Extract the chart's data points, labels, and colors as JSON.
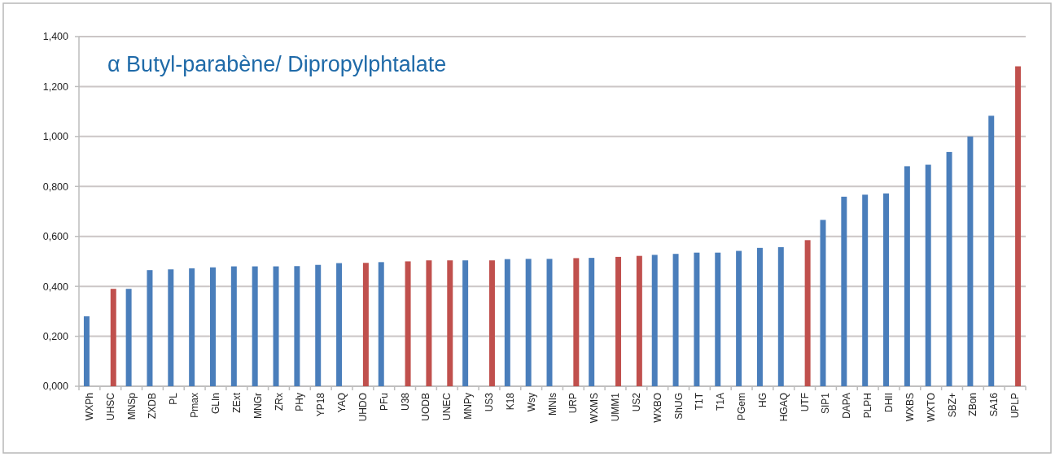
{
  "chart_data": {
    "type": "bar",
    "title": "α Butyl-parabène/ Dipropylphtalate",
    "categories": [
      "WXPh",
      "UHSC",
      "MNSp",
      "ZXDB",
      "PL",
      "Pmax",
      "GLIn",
      "ZExt",
      "MNGr",
      "ZRx",
      "PHy",
      "YP18",
      "YAQ",
      "UHDO",
      "PFu",
      "U38",
      "UODB",
      "UNEC",
      "MNPy",
      "US3",
      "K18",
      "Wsy",
      "MNIs",
      "URP",
      "WXMS",
      "UMM1",
      "US2",
      "WXBO",
      "ShUG",
      "T1T",
      "T1A",
      "PGem",
      "HG",
      "HGAQ",
      "UTF",
      "SIP1",
      "DAPA",
      "PLPH",
      "DHII",
      "WXBS",
      "WXTO",
      "SBZ+",
      "ZBon",
      "SA16",
      "UPLP"
    ],
    "series": [
      {
        "color": "#4a7ebb",
        "values": [
          0.28,
          null,
          0.39,
          0.465,
          0.468,
          0.472,
          0.476,
          0.48,
          0.48,
          0.48,
          0.481,
          0.486,
          0.493,
          null,
          0.497,
          null,
          null,
          null,
          0.504,
          null,
          0.509,
          0.51,
          0.51,
          null,
          0.514,
          null,
          null,
          0.526,
          0.53,
          0.535,
          0.535,
          0.542,
          0.554,
          0.557,
          null,
          0.666,
          0.759,
          0.767,
          0.772,
          0.881,
          0.887,
          0.938,
          1.0,
          1.083,
          null
        ]
      },
      {
        "color": "#c0504d",
        "values": [
          null,
          0.39,
          null,
          null,
          null,
          null,
          null,
          null,
          null,
          null,
          null,
          null,
          null,
          0.494,
          null,
          0.5,
          0.504,
          0.504,
          null,
          0.504,
          null,
          null,
          null,
          0.513,
          null,
          0.518,
          0.522,
          null,
          null,
          null,
          null,
          null,
          null,
          null,
          0.585,
          null,
          null,
          null,
          null,
          null,
          null,
          null,
          null,
          null,
          1.281
        ]
      }
    ],
    "ylim": [
      0,
      1.4
    ],
    "yticks": [
      {
        "value": 0,
        "label": "0,000"
      },
      {
        "value": 0.2,
        "label": "0,200"
      },
      {
        "value": 0.4,
        "label": "0,400"
      },
      {
        "value": 0.6,
        "label": "0,600"
      },
      {
        "value": 0.8,
        "label": "0,800"
      },
      {
        "value": 1.0,
        "label": "1,000"
      },
      {
        "value": 1.2,
        "label": "1,200"
      },
      {
        "value": 1.4,
        "label": "1,400"
      }
    ],
    "grid": "y"
  }
}
